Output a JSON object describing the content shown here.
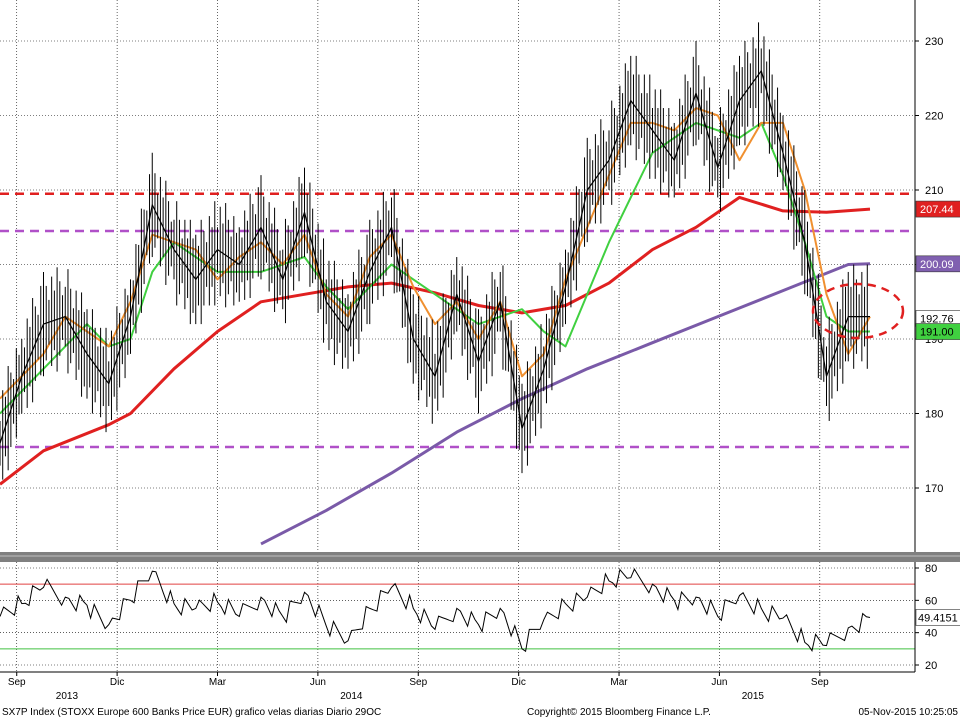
{
  "chart_data": {
    "type": "candlestick",
    "price_panel": {
      "y_ticks": [
        "170",
        "180",
        "190",
        "200",
        "210",
        "220",
        "230"
      ],
      "ylim": [
        160,
        233
      ],
      "grid": true,
      "resistance_levels": [
        {
          "value": 209.5,
          "color": "#e02020",
          "style": "dashed"
        },
        {
          "value": 204.5,
          "color": "#b050c8",
          "style": "dashed"
        },
        {
          "value": 175.5,
          "color": "#b050c8",
          "style": "dashed"
        }
      ],
      "last_value_badges": [
        {
          "text": "207.44",
          "value": 207.44,
          "bg": "#e02020",
          "fg": "#ffffff"
        },
        {
          "text": "200.09",
          "value": 200.09,
          "bg": "#8060b0",
          "fg": "#ffffff"
        },
        {
          "text": "192.76",
          "value": 192.76,
          "bg": "#ffffff",
          "fg": "#000000"
        },
        {
          "text": "191.00",
          "value": 191.0,
          "bg": "#40d040",
          "fg": "#000000"
        }
      ],
      "series": [
        {
          "name": "SMA 200",
          "color": "#7a5aa8",
          "points": [
            [
              12,
              162.5
            ],
            [
              15,
              167
            ],
            [
              18,
              172
            ],
            [
              21,
              177.5
            ],
            [
              24,
              182
            ],
            [
              27,
              186
            ],
            [
              30,
              189.5
            ],
            [
              33,
              193
            ],
            [
              36,
              196.5
            ],
            [
              39,
              200
            ],
            [
              40,
              200.09
            ]
          ]
        },
        {
          "name": "SMA 100",
          "color": "#e02020",
          "points": [
            [
              0,
              170.5
            ],
            [
              2,
              175
            ],
            [
              5,
              178.5
            ],
            [
              6,
              180
            ],
            [
              8,
              186
            ],
            [
              10,
              191
            ],
            [
              12,
              195
            ],
            [
              14,
              196
            ],
            [
              16,
              197
            ],
            [
              18,
              197.5
            ],
            [
              20,
              196.2
            ],
            [
              22,
              194.5
            ],
            [
              24,
              193.5
            ],
            [
              26,
              194.5
            ],
            [
              28,
              197.5
            ],
            [
              30,
              202
            ],
            [
              32,
              205
            ],
            [
              34,
              209
            ],
            [
              36,
              207.2
            ],
            [
              38,
              207
            ],
            [
              40,
              207.44
            ]
          ]
        },
        {
          "name": "SMA 50",
          "color": "#40d040",
          "points": [
            [
              0,
              180
            ],
            [
              2,
              186
            ],
            [
              4,
              192
            ],
            [
              5,
              189
            ],
            [
              6,
              190
            ],
            [
              7,
              199
            ],
            [
              8,
              203
            ],
            [
              10,
              199
            ],
            [
              12,
              199
            ],
            [
              14,
              201
            ],
            [
              15,
              197
            ],
            [
              16,
              194
            ],
            [
              18,
              200
            ],
            [
              20,
              196
            ],
            [
              22,
              192
            ],
            [
              24,
              194
            ],
            [
              25,
              191
            ],
            [
              26,
              189
            ],
            [
              28,
              203
            ],
            [
              30,
              215
            ],
            [
              32,
              219
            ],
            [
              34,
              217
            ],
            [
              35,
              219
            ],
            [
              36,
              212
            ],
            [
              37,
              203
            ],
            [
              38,
              193
            ],
            [
              39,
              191
            ],
            [
              40,
              191
            ]
          ]
        },
        {
          "name": "SMA 20",
          "color": "#f09030",
          "points": [
            [
              0,
              182
            ],
            [
              2,
              188
            ],
            [
              3,
              193
            ],
            [
              4,
              191
            ],
            [
              5,
              189
            ],
            [
              6,
              195
            ],
            [
              7,
              204
            ],
            [
              8,
              203
            ],
            [
              9,
              202
            ],
            [
              10,
              198
            ],
            [
              11,
              201
            ],
            [
              12,
              203
            ],
            [
              13,
              200
            ],
            [
              14,
              204
            ],
            [
              15,
              196
            ],
            [
              16,
              193
            ],
            [
              17,
              201
            ],
            [
              18,
              204
            ],
            [
              19,
              197
            ],
            [
              20,
              192
            ],
            [
              21,
              195
            ],
            [
              22,
              190
            ],
            [
              23,
              195
            ],
            [
              24,
              185
            ],
            [
              25,
              188
            ],
            [
              26,
              198
            ],
            [
              27,
              205
            ],
            [
              28,
              212
            ],
            [
              29,
              219
            ],
            [
              30,
              219
            ],
            [
              31,
              218
            ],
            [
              32,
              221
            ],
            [
              33,
              220
            ],
            [
              34,
              214
            ],
            [
              35,
              219
            ],
            [
              36,
              219
            ],
            [
              37,
              210
            ],
            [
              38,
              196
            ],
            [
              39,
              188
            ],
            [
              40,
              193
            ]
          ]
        },
        {
          "name": "Price",
          "color": "#000000",
          "points": [
            [
              0,
              176
            ],
            [
              1,
              185
            ],
            [
              2,
              192
            ],
            [
              3,
              193
            ],
            [
              4,
              188
            ],
            [
              5,
              184
            ],
            [
              6,
              193
            ],
            [
              7,
              208
            ],
            [
              8,
              202
            ],
            [
              9,
              198
            ],
            [
              10,
              202
            ],
            [
              11,
              200
            ],
            [
              12,
              205
            ],
            [
              13,
              198
            ],
            [
              14,
              207
            ],
            [
              15,
              195
            ],
            [
              16,
              191
            ],
            [
              17,
              199
            ],
            [
              18,
              205
            ],
            [
              19,
              190
            ],
            [
              20,
              185
            ],
            [
              21,
              196
            ],
            [
              22,
              187
            ],
            [
              23,
              195
            ],
            [
              24,
              178
            ],
            [
              25,
              186
            ],
            [
              26,
              197
            ],
            [
              27,
              210
            ],
            [
              28,
              214
            ],
            [
              29,
              222
            ],
            [
              30,
              218
            ],
            [
              31,
              214
            ],
            [
              32,
              223
            ],
            [
              33,
              213
            ],
            [
              34,
              222
            ],
            [
              35,
              226
            ],
            [
              36,
              215
            ],
            [
              37,
              203
            ],
            [
              38,
              185
            ],
            [
              39,
              193
            ],
            [
              40,
              193
            ]
          ]
        }
      ]
    },
    "rsi_panel": {
      "y_ticks": [
        "20",
        "40",
        "60",
        "80"
      ],
      "ylim": [
        16,
        84
      ],
      "levels": [
        {
          "value": 70,
          "color": "#e04040"
        },
        {
          "value": 30,
          "color": "#40c040"
        }
      ],
      "last_value_badge": {
        "text": "49.4151",
        "value": 49.4151,
        "bg": "#ffffff",
        "fg": "#000000"
      },
      "series": [
        {
          "name": "RSI",
          "color": "#000000",
          "points": [
            [
              0,
              50
            ],
            [
              1,
              58
            ],
            [
              2,
              68
            ],
            [
              3,
              62
            ],
            [
              4,
              57
            ],
            [
              5,
              45
            ],
            [
              6,
              60
            ],
            [
              7,
              78
            ],
            [
              8,
              58
            ],
            [
              9,
              55
            ],
            [
              10,
              59
            ],
            [
              11,
              50
            ],
            [
              12,
              62
            ],
            [
              13,
              50
            ],
            [
              14,
              65
            ],
            [
              15,
              44
            ],
            [
              16,
              35
            ],
            [
              17,
              55
            ],
            [
              18,
              68
            ],
            [
              19,
              55
            ],
            [
              20,
              42
            ],
            [
              21,
              55
            ],
            [
              22,
              45
            ],
            [
              23,
              55
            ],
            [
              24,
              30
            ],
            [
              25,
              48
            ],
            [
              26,
              58
            ],
            [
              27,
              62
            ],
            [
              28,
              72
            ],
            [
              29,
              74
            ],
            [
              30,
              70
            ],
            [
              31,
              60
            ],
            [
              32,
              62
            ],
            [
              33,
              50
            ],
            [
              34,
              63
            ],
            [
              35,
              55
            ],
            [
              36,
              49
            ],
            [
              37,
              34
            ],
            [
              38,
              32
            ],
            [
              39,
              43
            ],
            [
              40,
              49.4
            ]
          ]
        }
      ]
    },
    "x_axis": {
      "month_labels": [
        {
          "text": "Sep",
          "x": 0.5
        },
        {
          "text": "Dic",
          "x": 3.5
        },
        {
          "text": "Mar",
          "x": 6.5
        },
        {
          "text": "Jun",
          "x": 9.5
        },
        {
          "text": "Sep",
          "x": 12.5
        },
        {
          "text": "Dic",
          "x": 15.5
        },
        {
          "text": "Mar",
          "x": 18.5
        },
        {
          "text": "Jun",
          "x": 21.5
        },
        {
          "text": "Sep",
          "x": 24.5
        }
      ],
      "year_labels": [
        {
          "text": "2013",
          "x": 2
        },
        {
          "text": "2014",
          "x": 10.5
        },
        {
          "text": "2015",
          "x": 22.5
        }
      ]
    }
  },
  "footer": {
    "title": "SX7P Index (STOXX Europe 600 Banks Price EUR) grafico velas diarias  Diario 29OC",
    "copyright": "Copyright© 2015 Bloomberg Finance L.P.",
    "timestamp": "05-Nov-2015  10:25:05"
  }
}
